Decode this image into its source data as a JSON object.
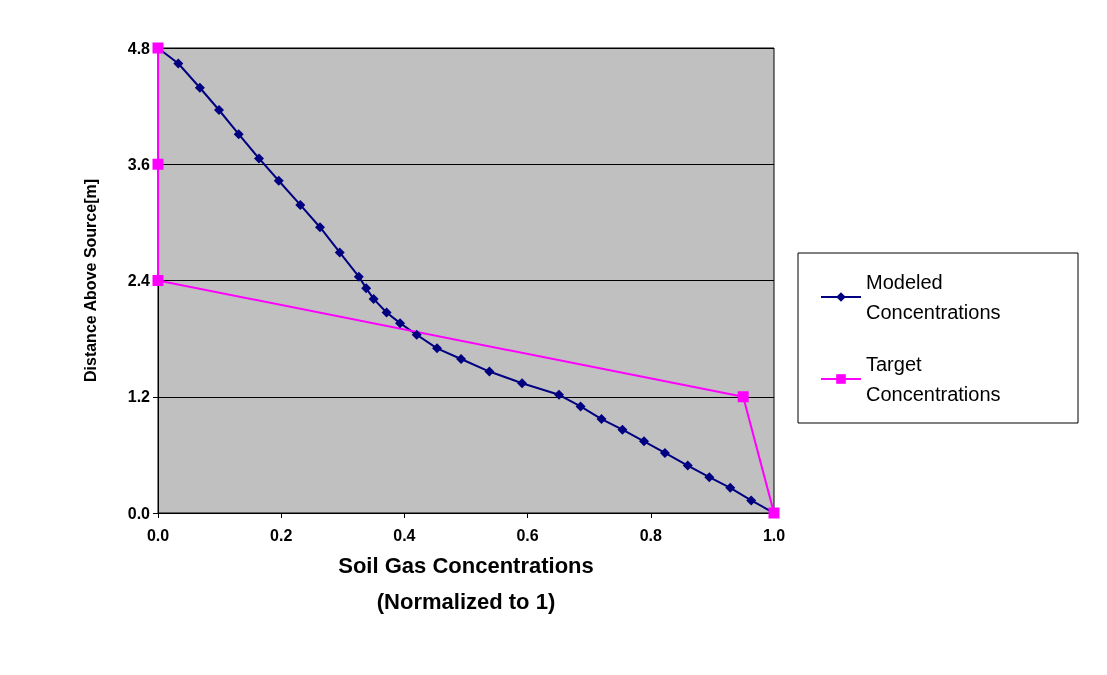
{
  "chart_data": {
    "type": "line",
    "xlabel": "Soil Gas Concentrations\n(Normalized to 1)",
    "ylabel": "Distance Above Source[m]",
    "xlim": [
      0,
      1
    ],
    "xticks": [
      {
        "value": 0,
        "label": "0.0"
      },
      0.2,
      0.4,
      0.6,
      0.8,
      {
        "value": 1,
        "label": "1.0"
      }
    ],
    "ylim": [
      0,
      4.8
    ],
    "yticks": [
      {
        "value": 0,
        "label": "0.0"
      },
      1.2,
      2.4,
      3.6,
      4.8
    ],
    "grid": "y",
    "legend": "right",
    "line_style": "solid",
    "series": [
      {
        "name": "Modeled Concentrations",
        "color": "#000080",
        "marker": "diamond",
        "x": [
          0,
          0.033,
          0.068,
          0.099,
          0.131,
          0.164,
          0.196,
          0.231,
          0.263,
          0.295,
          0.326,
          0.338,
          0.35,
          0.371,
          0.393,
          0.42,
          0.453,
          0.492,
          0.538,
          0.591,
          0.651,
          0.686,
          0.72,
          0.754,
          0.789,
          0.823,
          0.86,
          0.895,
          0.929,
          0.963,
          1
        ],
        "values": [
          4.8,
          4.64,
          4.39,
          4.16,
          3.91,
          3.66,
          3.43,
          3.18,
          2.95,
          2.69,
          2.44,
          2.32,
          2.21,
          2.07,
          1.96,
          1.84,
          1.7,
          1.59,
          1.46,
          1.34,
          1.22,
          1.1,
          0.97,
          0.86,
          0.74,
          0.62,
          0.49,
          0.37,
          0.26,
          0.13,
          0
        ]
      },
      {
        "name": "Target Concentrations",
        "color": "#ff00ff",
        "marker": "square",
        "x": [
          0,
          0,
          0,
          0.95,
          1
        ],
        "values": [
          4.8,
          3.6,
          2.4,
          1.2,
          0
        ]
      }
    ]
  }
}
